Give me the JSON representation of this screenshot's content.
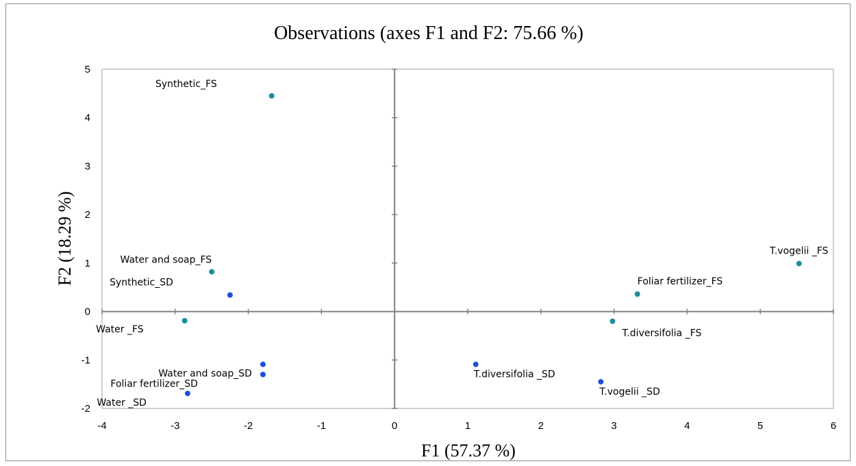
{
  "chart_data": {
    "type": "scatter",
    "title": "Observations (axes F1 and F2: 75.66 %)",
    "xlabel": "F1 (57.37 %)",
    "ylabel": "F2 (18.29 %)",
    "xlim": [
      -4,
      6
    ],
    "ylim": [
      -2,
      5
    ],
    "xticks": [
      -4,
      -3,
      -2,
      -1,
      0,
      1,
      2,
      3,
      4,
      5,
      6
    ],
    "yticks": [
      -2,
      -1,
      0,
      1,
      2,
      3,
      4,
      5
    ],
    "grid": false,
    "colors": {
      "FS": "#1a8f9a",
      "SD": "#1f4fd8"
    },
    "points": [
      {
        "label": "Synthetic_FS",
        "x": -1.68,
        "y": 4.45,
        "group": "FS"
      },
      {
        "label": "Water and soap_FS",
        "x": -2.5,
        "y": 0.82,
        "group": "FS"
      },
      {
        "label": "Synthetic_SD",
        "x": -2.25,
        "y": 0.34,
        "group": "SD"
      },
      {
        "label": "Water _FS",
        "x": -2.87,
        "y": -0.19,
        "group": "FS"
      },
      {
        "label": "Water and soap_SD",
        "x": -1.8,
        "y": -1.09,
        "group": "SD"
      },
      {
        "label": "Foliar fertilizer_SD",
        "x": -1.8,
        "y": -1.3,
        "group": "SD"
      },
      {
        "label": "Water _SD",
        "x": -2.83,
        "y": -1.69,
        "group": "SD"
      },
      {
        "label": "T.vogelii _FS",
        "x": 5.53,
        "y": 0.99,
        "group": "FS"
      },
      {
        "label": "Foliar fertilizer_FS",
        "x": 3.32,
        "y": 0.36,
        "group": "FS"
      },
      {
        "label": "T.diversifolia _FS",
        "x": 2.98,
        "y": -0.2,
        "group": "FS"
      },
      {
        "label": "T.diversifolia _SD",
        "x": 1.11,
        "y": -1.09,
        "group": "SD"
      },
      {
        "label": "T.vogelii _SD",
        "x": 2.82,
        "y": -1.45,
        "group": "SD"
      }
    ]
  }
}
